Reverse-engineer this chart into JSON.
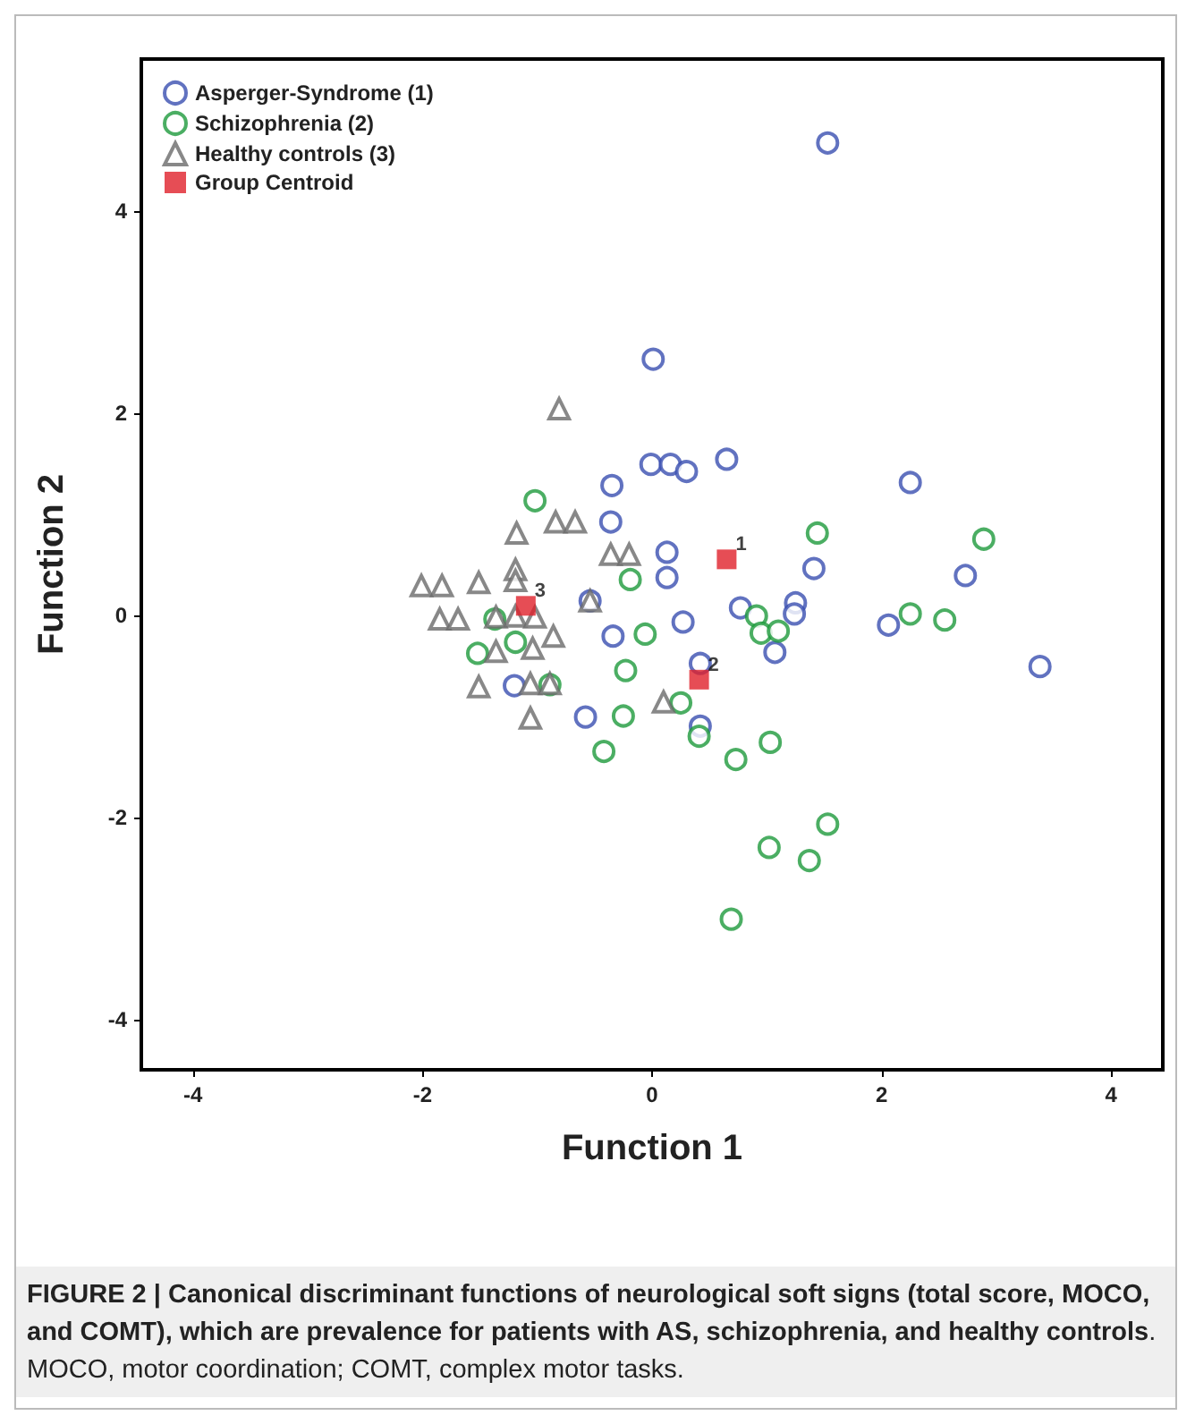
{
  "chart_data": {
    "type": "scatter",
    "xlabel": "Function 1",
    "ylabel": "Function 2",
    "xlim": [
      -4.45,
      4.45
    ],
    "xticks": [
      -4,
      -2,
      0,
      2,
      4
    ],
    "ylim": [
      -4.5,
      5.5
    ],
    "yticks": [
      -4,
      -2,
      0,
      2,
      4
    ],
    "grid": false,
    "legend": "top left",
    "series": [
      {
        "name": "Asperger-Syndrome (1)",
        "color": "#3a4fb0",
        "marker": "circle",
        "x": [
          1.53,
          0.01,
          -0.01,
          0.16,
          0.3,
          0.65,
          2.25,
          -0.35,
          -0.36,
          0.13,
          0.13,
          1.41,
          2.73,
          0.77,
          0.27,
          -0.34,
          1.25,
          1.24,
          1.07,
          2.06,
          3.38,
          0.42,
          0.42,
          -0.54,
          -1.2,
          -0.58
        ],
        "values": [
          4.67,
          2.53,
          1.49,
          1.49,
          1.42,
          1.54,
          1.31,
          1.28,
          0.92,
          0.62,
          0.37,
          0.46,
          0.39,
          0.07,
          -0.07,
          -0.21,
          0.12,
          0.01,
          -0.37,
          -0.1,
          -0.51,
          -0.48,
          -1.1,
          0.14,
          -0.7,
          -1.01
        ]
      },
      {
        "name": "Schizophrenia (2)",
        "color": "#1e9a3c",
        "marker": "circle",
        "x": [
          1.44,
          2.89,
          -0.19,
          -0.06,
          -0.23,
          -0.25,
          0.25,
          0.41,
          0.73,
          1.03,
          0.91,
          0.95,
          1.1,
          2.25,
          2.55,
          1.53,
          1.02,
          1.37,
          0.69,
          -1.02,
          -1.37,
          -1.19,
          -1.52,
          -0.89,
          -0.42
        ],
        "values": [
          0.81,
          0.75,
          0.35,
          -0.19,
          -0.55,
          -1.0,
          -0.87,
          -1.2,
          -1.43,
          -1.26,
          -0.01,
          -0.18,
          -0.16,
          0.01,
          -0.05,
          -2.07,
          -2.3,
          -2.43,
          -3.01,
          1.13,
          -0.04,
          -0.27,
          -0.38,
          -0.69,
          -1.35
        ]
      },
      {
        "name": "Healthy controls (3)",
        "color": "#6a6a6a",
        "marker": "triangle",
        "x": [
          -0.81,
          -1.18,
          -0.84,
          -0.67,
          -0.36,
          -0.2,
          -2.01,
          -1.83,
          -1.51,
          -1.19,
          -1.19,
          -1.85,
          -1.69,
          -1.36,
          -1.19,
          -1.02,
          -1.36,
          -1.04,
          -0.86,
          -1.51,
          -1.06,
          -0.89,
          -1.06,
          0.1,
          -0.54
        ],
        "values": [
          2.04,
          0.81,
          0.92,
          0.92,
          0.6,
          0.6,
          0.29,
          0.29,
          0.32,
          0.45,
          0.34,
          -0.04,
          -0.04,
          -0.02,
          -0.01,
          -0.02,
          -0.36,
          -0.33,
          -0.21,
          -0.71,
          -0.68,
          -0.68,
          -1.02,
          -0.86,
          0.14
        ]
      },
      {
        "name": "Group Centroid",
        "color": "#e0202a",
        "marker": "square",
        "x": [
          0.65,
          0.41,
          -1.1
        ],
        "values": [
          0.55,
          -0.64,
          0.09
        ]
      }
    ],
    "annotations": [
      {
        "text": "1",
        "x": 0.65,
        "y": 0.55
      },
      {
        "text": "2",
        "x": 0.41,
        "y": -0.64
      },
      {
        "text": "3",
        "x": -1.1,
        "y": 0.09
      },
      "FIGURE 2 | Canonical discriminant functions of neurological soft signs (total score, MOCO, and COMT), which are prevalence for patients with AS, schizophrenia, and healthy controls",
      ". MOCO, motor coordination; COMT, complex motor tasks."
    ]
  }
}
